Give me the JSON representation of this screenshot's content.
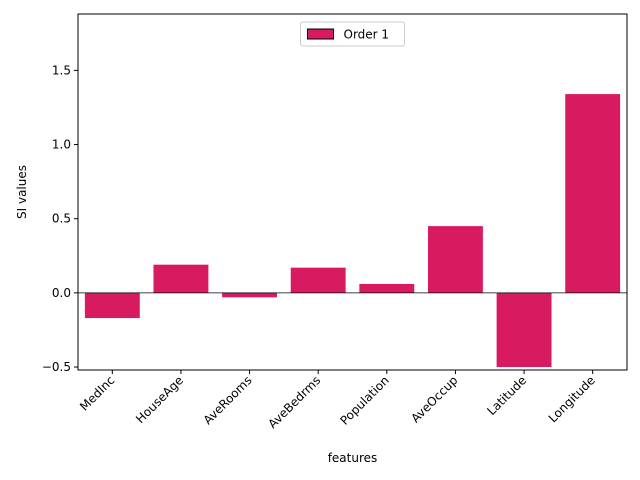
{
  "chart_data": {
    "type": "bar",
    "categories": [
      "MedInc",
      "HouseAge",
      "AveRooms",
      "AveBedrms",
      "Population",
      "AveOccup",
      "Latitude",
      "Longitude"
    ],
    "series": [
      {
        "name": "Order 1",
        "values": [
          -0.17,
          0.19,
          -0.03,
          0.17,
          0.06,
          0.45,
          -0.5,
          1.34
        ]
      }
    ],
    "xlabel": "features",
    "ylabel": "SI values",
    "ylim": [
      -0.52,
      1.88
    ],
    "yticks": [
      -0.5,
      0.0,
      0.5,
      1.0,
      1.5
    ],
    "ytick_labels": [
      "−0.5",
      "0.0",
      "0.5",
      "1.0",
      "1.5"
    ],
    "legend_position": "top-center",
    "zero_line": true,
    "grid": false,
    "colors": {
      "bar_fill": "#d81b60",
      "legend_edge": "#000000",
      "zero_line": "#000000"
    }
  }
}
